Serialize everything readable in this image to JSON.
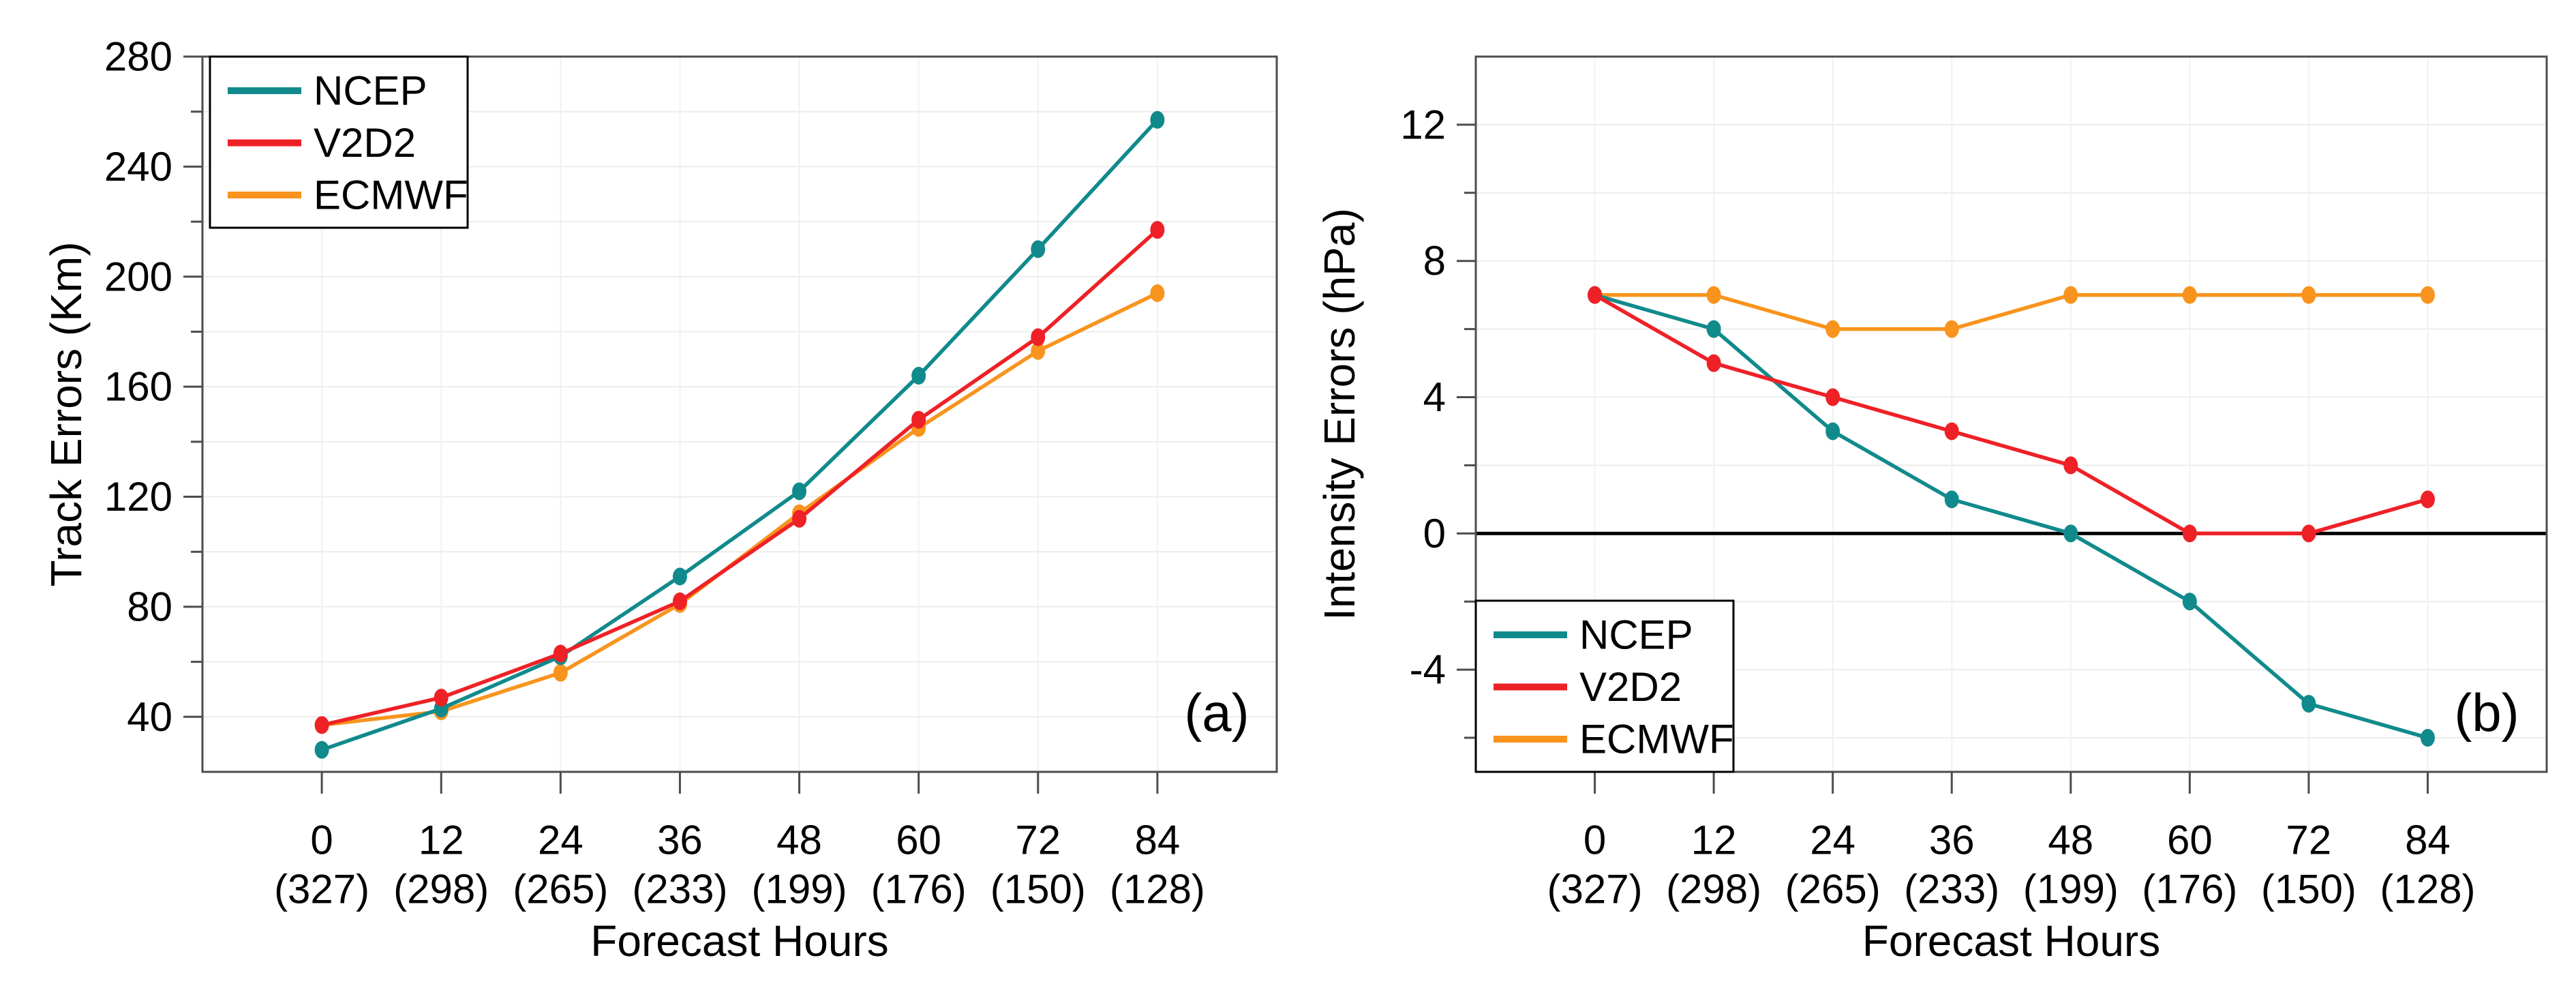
{
  "figure": {
    "background": "#ffffff",
    "frame_color": "#4d4d4d",
    "grid_color": "#ececec",
    "zero_line_color": "#000000"
  },
  "chart_data": [
    {
      "type": "line",
      "panel_label": "(a)",
      "title": "",
      "xlabel": "Forecast Hours",
      "ylabel": "Track Errors (Km)",
      "x": [
        0,
        12,
        24,
        36,
        48,
        60,
        72,
        84
      ],
      "x_tick_labels": [
        "0",
        "12",
        "24",
        "36",
        "48",
        "60",
        "72",
        "84"
      ],
      "x_tick_sublabels": [
        "(327)",
        "(298)",
        "(265)",
        "(233)",
        "(199)",
        "(176)",
        "(150)",
        "(128)"
      ],
      "xlim": [
        -12,
        96
      ],
      "ylim": [
        20,
        280
      ],
      "yticks_major": [
        40,
        80,
        120,
        160,
        200,
        240,
        280
      ],
      "ytick_labels": [
        "40",
        "80",
        "120",
        "160",
        "200",
        "240",
        "280"
      ],
      "yticks_minor": [
        60,
        100,
        140,
        180,
        220,
        260
      ],
      "grid": true,
      "zero_line": false,
      "legend_position": "top-left",
      "series": [
        {
          "name": "NCEP",
          "color": "#118a8c",
          "values": [
            28,
            43,
            62,
            91,
            122,
            164,
            210,
            257
          ]
        },
        {
          "name": "V2D2",
          "color": "#ee2127",
          "values": [
            37,
            47,
            63,
            82,
            112,
            148,
            178,
            217
          ]
        },
        {
          "name": "ECMWF",
          "color": "#f8941e",
          "values": [
            37,
            42,
            56,
            81,
            114,
            145,
            173,
            194
          ]
        }
      ]
    },
    {
      "type": "line",
      "panel_label": "(b)",
      "title": "",
      "xlabel": "Forecast Hours",
      "ylabel": "Intensity Errors (hPa)",
      "x": [
        0,
        12,
        24,
        36,
        48,
        60,
        72,
        84
      ],
      "x_tick_labels": [
        "0",
        "12",
        "24",
        "36",
        "48",
        "60",
        "72",
        "84"
      ],
      "x_tick_sublabels": [
        "(327)",
        "(298)",
        "(265)",
        "(233)",
        "(199)",
        "(176)",
        "(150)",
        "(128)"
      ],
      "xlim": [
        -12,
        96
      ],
      "ylim": [
        -7,
        14
      ],
      "yticks_major": [
        -4,
        0,
        4,
        8,
        12
      ],
      "ytick_labels": [
        "-4",
        "0",
        "4",
        "8",
        "12"
      ],
      "yticks_minor": [
        -6,
        -2,
        2,
        6,
        10
      ],
      "grid": true,
      "zero_line": true,
      "legend_position": "bottom-left",
      "series": [
        {
          "name": "NCEP",
          "color": "#118a8c",
          "values": [
            7,
            6,
            3,
            1,
            0,
            -2,
            -5,
            -6
          ]
        },
        {
          "name": "V2D2",
          "color": "#ee2127",
          "values": [
            7,
            5,
            4,
            3,
            2,
            0,
            0,
            1
          ]
        },
        {
          "name": "ECMWF",
          "color": "#f8941e",
          "values": [
            7,
            7,
            6,
            6,
            7,
            7,
            7,
            7
          ]
        }
      ]
    }
  ]
}
